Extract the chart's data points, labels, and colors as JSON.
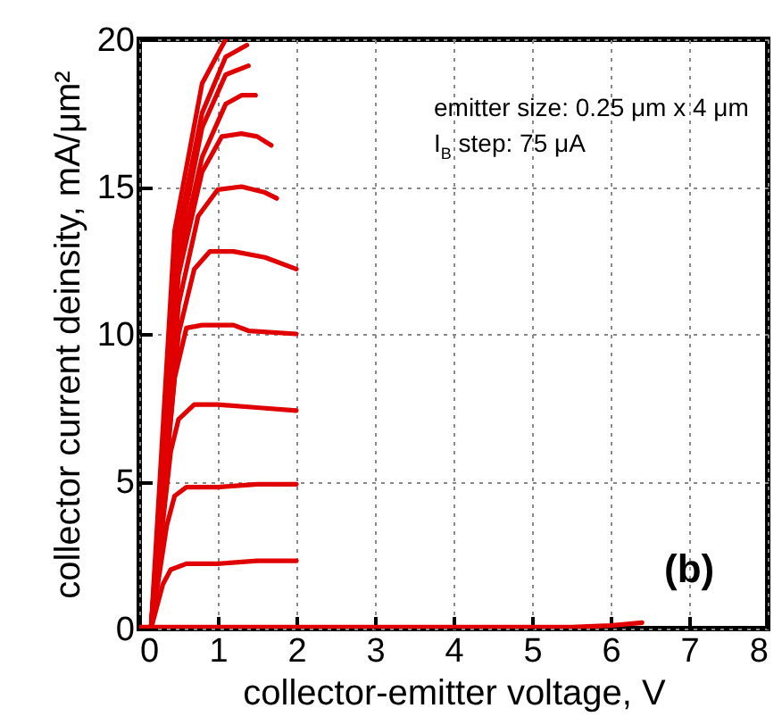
{
  "chart_data": {
    "type": "line",
    "xlabel": "collector-emitter voltage, V",
    "ylabel": "collector current deinsity, mA/μm²",
    "xlim": [
      0,
      8
    ],
    "ylim": [
      0,
      20
    ],
    "xticks": [
      0,
      1,
      2,
      3,
      4,
      5,
      6,
      7,
      8
    ],
    "yticks": [
      0,
      5,
      10,
      15,
      20
    ],
    "grid": true,
    "line_style": "solid",
    "marker": "none",
    "legend": false,
    "annotations": [
      "emitter size: 0.25 μm x 4 μm",
      "I$_{B}$ step: 75 μA",
      "(b)"
    ],
    "series": [
      {
        "color": "#e00000",
        "x": [
          0.15,
          0.3,
          0.4,
          0.6,
          1,
          1.5,
          2
        ],
        "values": [
          0,
          1.5,
          2.0,
          2.2,
          2.2,
          2.3,
          2.3
        ]
      },
      {
        "color": "#e00000",
        "x": [
          0.15,
          0.35,
          0.45,
          0.6,
          1,
          1.5,
          2
        ],
        "values": [
          0,
          3.5,
          4.5,
          4.8,
          4.8,
          4.9,
          4.9
        ]
      },
      {
        "color": "#e00000",
        "x": [
          0.15,
          0.4,
          0.5,
          0.7,
          1,
          1.5,
          2
        ],
        "values": [
          0,
          6,
          7.1,
          7.6,
          7.6,
          7.5,
          7.4
        ]
      },
      {
        "color": "#e00000",
        "x": [
          0.15,
          0.45,
          0.6,
          0.8,
          1.2,
          1.4,
          2
        ],
        "values": [
          0,
          8.5,
          10.2,
          10.3,
          10.3,
          10.1,
          10.0
        ]
      },
      {
        "color": "#e00000",
        "x": [
          0.15,
          0.5,
          0.7,
          0.9,
          1.2,
          1.6,
          2
        ],
        "values": [
          0,
          10,
          12.2,
          12.8,
          12.8,
          12.6,
          12.2
        ]
      },
      {
        "color": "#e00000",
        "x": [
          0.15,
          0.5,
          0.75,
          1,
          1.3,
          1.6,
          1.75
        ],
        "values": [
          0,
          11,
          14,
          14.9,
          15.0,
          14.8,
          14.6
        ]
      },
      {
        "color": "#e00000",
        "x": [
          0.15,
          0.5,
          0.8,
          1.05,
          1.3,
          1.5,
          1.68
        ],
        "values": [
          0,
          12,
          15.5,
          16.7,
          16.8,
          16.7,
          16.4
        ]
      },
      {
        "color": "#e00000",
        "x": [
          0.15,
          0.5,
          0.8,
          1.1,
          1.3,
          1.48
        ],
        "values": [
          0,
          12.5,
          16,
          17.8,
          18.1,
          18.1
        ]
      },
      {
        "color": "#e00000",
        "x": [
          0.15,
          0.5,
          0.8,
          1.1,
          1.39
        ],
        "values": [
          0,
          13,
          17,
          18.8,
          19.1
        ]
      },
      {
        "color": "#e00000",
        "x": [
          0.15,
          0.5,
          0.8,
          1.1,
          1.37
        ],
        "values": [
          0,
          13.5,
          17.5,
          19.4,
          19.8
        ]
      },
      {
        "color": "#e00000",
        "x": [
          0.15,
          0.45,
          0.8,
          1.1
        ],
        "values": [
          0,
          13.5,
          18.5,
          20
        ]
      },
      {
        "color": "#e00000",
        "x": [
          0,
          5.5,
          6,
          6.4
        ],
        "values": [
          0.05,
          0.05,
          0.1,
          0.2
        ]
      }
    ]
  }
}
